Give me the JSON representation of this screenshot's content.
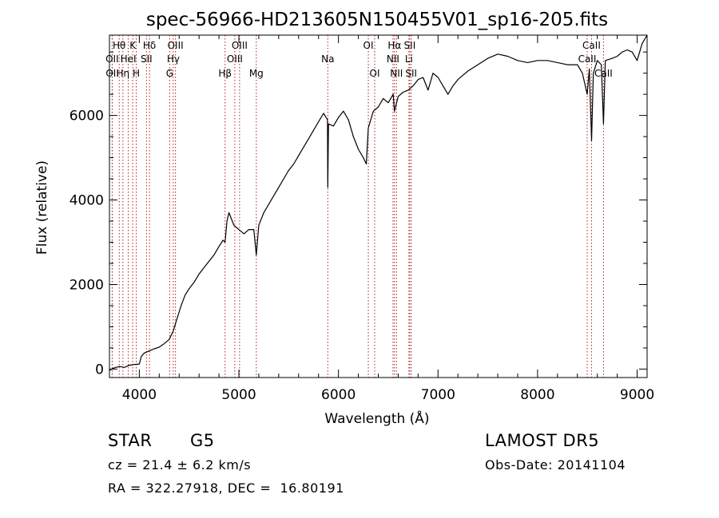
{
  "chart_data": {
    "type": "line",
    "title": "spec-56966-HD213605N150455V01_sp16-205.fits",
    "xlabel": "Wavelength (Å)",
    "ylabel": "Flux (relative)",
    "xlim": [
      3700,
      9100
    ],
    "ylim": [
      -200,
      7900
    ],
    "xticks": [
      4000,
      5000,
      6000,
      7000,
      8000,
      9000
    ],
    "yticks": [
      0,
      2000,
      4000,
      6000
    ],
    "series": [
      {
        "points": [
          [
            3700,
            -30
          ],
          [
            3750,
            30
          ],
          [
            3800,
            60
          ],
          [
            3850,
            40
          ],
          [
            3900,
            90
          ],
          [
            3950,
            110
          ],
          [
            4000,
            120
          ],
          [
            4020,
            300
          ],
          [
            4050,
            380
          ],
          [
            4100,
            430
          ],
          [
            4150,
            480
          ],
          [
            4200,
            520
          ],
          [
            4250,
            600
          ],
          [
            4300,
            700
          ],
          [
            4340,
            900
          ],
          [
            4380,
            1200
          ],
          [
            4420,
            1500
          ],
          [
            4460,
            1750
          ],
          [
            4500,
            1900
          ],
          [
            4550,
            2050
          ],
          [
            4600,
            2250
          ],
          [
            4650,
            2400
          ],
          [
            4700,
            2550
          ],
          [
            4750,
            2700
          ],
          [
            4800,
            2900
          ],
          [
            4840,
            3050
          ],
          [
            4861,
            3000
          ],
          [
            4880,
            3500
          ],
          [
            4900,
            3700
          ],
          [
            4950,
            3400
          ],
          [
            5000,
            3300
          ],
          [
            5050,
            3200
          ],
          [
            5100,
            3300
          ],
          [
            5150,
            3300
          ],
          [
            5175,
            2700
          ],
          [
            5200,
            3400
          ],
          [
            5250,
            3700
          ],
          [
            5300,
            3900
          ],
          [
            5350,
            4100
          ],
          [
            5400,
            4300
          ],
          [
            5450,
            4500
          ],
          [
            5500,
            4700
          ],
          [
            5550,
            4850
          ],
          [
            5600,
            5050
          ],
          [
            5650,
            5250
          ],
          [
            5700,
            5450
          ],
          [
            5750,
            5650
          ],
          [
            5800,
            5850
          ],
          [
            5850,
            6050
          ],
          [
            5890,
            5900
          ],
          [
            5893,
            4300
          ],
          [
            5900,
            5800
          ],
          [
            5950,
            5750
          ],
          [
            6000,
            5950
          ],
          [
            6050,
            6100
          ],
          [
            6100,
            5900
          ],
          [
            6150,
            5500
          ],
          [
            6200,
            5200
          ],
          [
            6250,
            5000
          ],
          [
            6280,
            4850
          ],
          [
            6300,
            5700
          ],
          [
            6350,
            6100
          ],
          [
            6400,
            6200
          ],
          [
            6450,
            6400
          ],
          [
            6500,
            6300
          ],
          [
            6550,
            6500
          ],
          [
            6563,
            6100
          ],
          [
            6600,
            6450
          ],
          [
            6650,
            6550
          ],
          [
            6700,
            6600
          ],
          [
            6750,
            6700
          ],
          [
            6800,
            6850
          ],
          [
            6850,
            6900
          ],
          [
            6900,
            6600
          ],
          [
            6950,
            7000
          ],
          [
            7000,
            6900
          ],
          [
            7050,
            6700
          ],
          [
            7100,
            6500
          ],
          [
            7150,
            6700
          ],
          [
            7200,
            6850
          ],
          [
            7250,
            6950
          ],
          [
            7300,
            7050
          ],
          [
            7400,
            7200
          ],
          [
            7500,
            7350
          ],
          [
            7600,
            7450
          ],
          [
            7700,
            7400
          ],
          [
            7800,
            7300
          ],
          [
            7900,
            7250
          ],
          [
            8000,
            7300
          ],
          [
            8100,
            7300
          ],
          [
            8200,
            7250
          ],
          [
            8300,
            7200
          ],
          [
            8400,
            7200
          ],
          [
            8450,
            7000
          ],
          [
            8498,
            6500
          ],
          [
            8520,
            7100
          ],
          [
            8542,
            5400
          ],
          [
            8560,
            7000
          ],
          [
            8600,
            7300
          ],
          [
            8640,
            7200
          ],
          [
            8662,
            5800
          ],
          [
            8680,
            7300
          ],
          [
            8750,
            7350
          ],
          [
            8800,
            7400
          ],
          [
            8850,
            7500
          ],
          [
            8900,
            7550
          ],
          [
            8950,
            7500
          ],
          [
            9000,
            7300
          ],
          [
            9050,
            7700
          ],
          [
            9100,
            7900
          ]
        ]
      }
    ],
    "spectral_lines": [
      {
        "label": "Hθ",
        "wl": 3798,
        "row": 0
      },
      {
        "label": "OII",
        "wl": 3727,
        "row": 1
      },
      {
        "label": "OII",
        "wl": 3729,
        "row": 2
      },
      {
        "label": "Hη",
        "wl": 3835,
        "row": 2
      },
      {
        "label": "HeI",
        "wl": 3889,
        "row": 1
      },
      {
        "label": "K",
        "wl": 3934,
        "row": 0
      },
      {
        "label": "H",
        "wl": 3969,
        "row": 2
      },
      {
        "label": "SII",
        "wl": 4072,
        "row": 1
      },
      {
        "label": "Hδ",
        "wl": 4102,
        "row": 0
      },
      {
        "label": "OIII",
        "wl": 4363,
        "row": 0
      },
      {
        "label": "Hγ",
        "wl": 4341,
        "row": 1
      },
      {
        "label": "G",
        "wl": 4305,
        "row": 2
      },
      {
        "label": "Hβ",
        "wl": 4861,
        "row": 2
      },
      {
        "label": "OIII",
        "wl": 4959,
        "row": 1
      },
      {
        "label": "OIII",
        "wl": 5007,
        "row": 0
      },
      {
        "label": "Mg",
        "wl": 5175,
        "row": 2
      },
      {
        "label": "Na",
        "wl": 5893,
        "row": 1
      },
      {
        "label": "OI",
        "wl": 6300,
        "row": 0
      },
      {
        "label": "OI",
        "wl": 6364,
        "row": 2
      },
      {
        "label": "NII",
        "wl": 6548,
        "row": 1
      },
      {
        "label": "Hα",
        "wl": 6563,
        "row": 0
      },
      {
        "label": "NII",
        "wl": 6583,
        "row": 2
      },
      {
        "label": "Li",
        "wl": 6708,
        "row": 1
      },
      {
        "label": "SII",
        "wl": 6716,
        "row": 0
      },
      {
        "label": "SII",
        "wl": 6731,
        "row": 2
      },
      {
        "label": "CaII",
        "wl": 8498,
        "row": 1
      },
      {
        "label": "CaII",
        "wl": 8542,
        "row": 0
      },
      {
        "label": "CaII",
        "wl": 8662,
        "row": 2
      }
    ]
  },
  "info": {
    "object_type": "STAR",
    "subclass": "G5",
    "survey": "LAMOST DR5",
    "redshift": "cz = 21.4 ± 6.2 km/s",
    "obs_date": "Obs-Date: 20141104",
    "coords": "RA = 322.27918, DEC =  16.80191"
  },
  "colors": {
    "line_markers": "#b02020",
    "spectrum": "#000000"
  }
}
